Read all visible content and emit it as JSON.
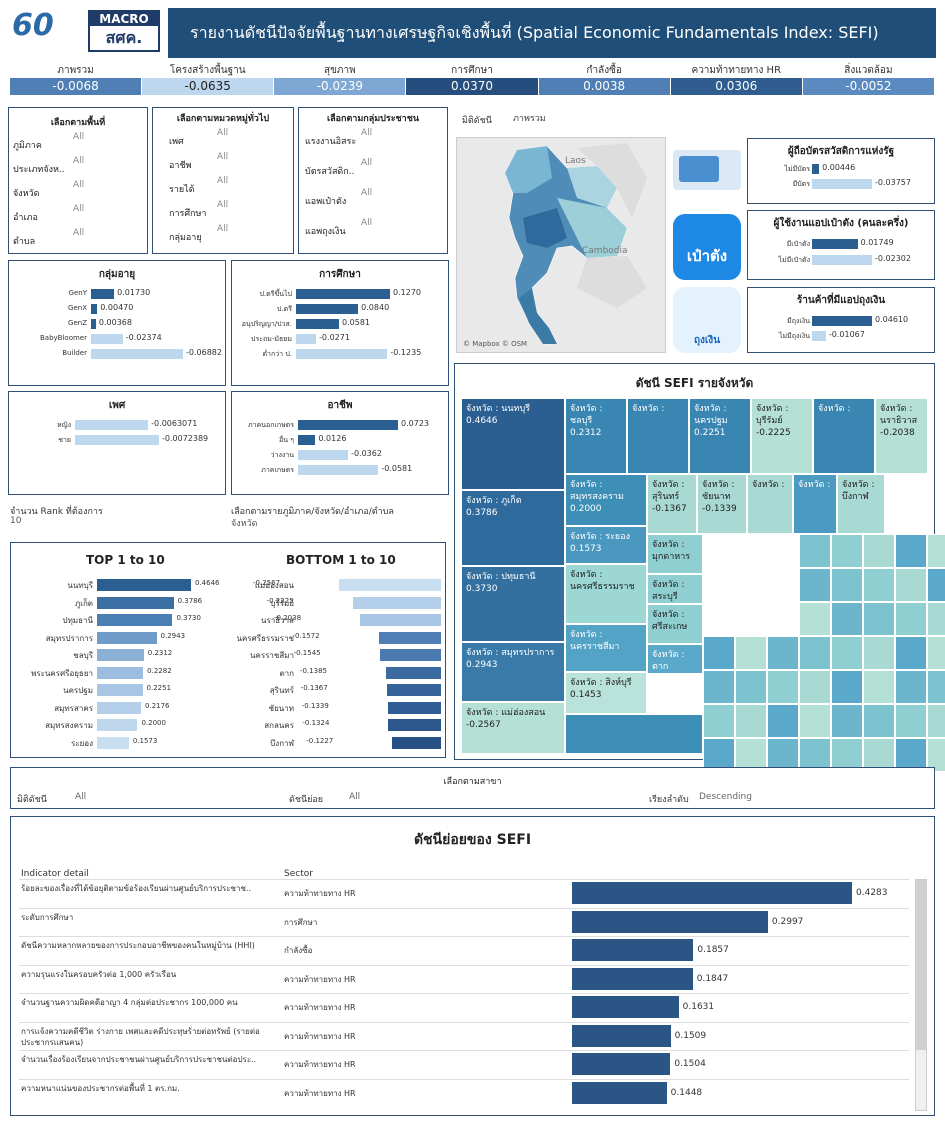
{
  "header": {
    "logo_60": "60",
    "logo_macro_top": "MACRO",
    "logo_macro_bottom": "สศค.",
    "title": "รายงานดัชนีปัจจัยพื้นฐานทางเศรษฐกิจเชิงพื้นที่ (Spatial Economic Fundamentals Index: SEFI)"
  },
  "kpis": [
    {
      "label": "ภาพรวม",
      "value": "-0.0068",
      "color": "#4f7fb5"
    },
    {
      "label": "โครงสร้างพื้นฐาน",
      "value": "-0.0635",
      "color": "#bdd7ee"
    },
    {
      "label": "สุขภาพ",
      "value": "-0.0239",
      "color": "#7fa7d4"
    },
    {
      "label": "การศึกษา",
      "value": "0.0370",
      "color": "#254d7d"
    },
    {
      "label": "กำลังซื้อ",
      "value": "0.0038",
      "color": "#4f7fb5"
    },
    {
      "label": "ความท้าทายทาง HR",
      "value": "0.0306",
      "color": "#2f5d8f"
    },
    {
      "label": "สิ่งแวดล้อม",
      "value": "-0.0052",
      "color": "#5a8ac0"
    }
  ],
  "filters_area": {
    "title": "เลือกตามพื้นที่",
    "items": [
      {
        "label": "ภูมิภาค",
        "value": "All"
      },
      {
        "label": "ประเภทจังห..",
        "value": "All"
      },
      {
        "label": "จังหวัด",
        "value": "All"
      },
      {
        "label": "อำเภอ",
        "value": "All"
      },
      {
        "label": "ตำบล",
        "value": "All"
      }
    ]
  },
  "filters_general": {
    "title": "เลือกตามหมวดหมู่ทั่วไป",
    "items": [
      {
        "label": "เพศ",
        "value": "All"
      },
      {
        "label": "อาชีพ",
        "value": "All"
      },
      {
        "label": "รายได้",
        "value": "All"
      },
      {
        "label": "การศึกษา",
        "value": "All"
      },
      {
        "label": "กลุ่มอายุ",
        "value": "All"
      }
    ]
  },
  "filters_pop": {
    "title": "เลือกตามกลุ่มประชาชน",
    "items": [
      {
        "label": "แรงงานอิสระ",
        "value": "All"
      },
      {
        "label": "บัตรสวัสดิก..",
        "value": "All"
      },
      {
        "label": "แอพเป๋าตัง",
        "value": "All"
      },
      {
        "label": "แอพถุงเงิน",
        "value": "All"
      }
    ]
  },
  "map": {
    "dim_label": "มิติดัชนี",
    "dim_value": "ภาพรวม",
    "laos": "Laos",
    "cambodia": "Cambodia",
    "credit": "© Mapbox © OSM"
  },
  "age": {
    "title": "กลุ่มอายุ",
    "rows": [
      {
        "label": "GenY",
        "value": "0.01730",
        "v": 0.0173
      },
      {
        "label": "GenX",
        "value": "0.00470",
        "v": 0.0047
      },
      {
        "label": "GenZ",
        "value": "0.00368",
        "v": 0.00368
      },
      {
        "label": "BabyBloomer",
        "value": "-0.02374",
        "v": -0.02374
      },
      {
        "label": "Builder",
        "value": "-0.06882",
        "v": -0.06882
      }
    ]
  },
  "edu": {
    "title": "การศึกษา",
    "rows": [
      {
        "label": "ป.ตรีขึ้นไป",
        "value": "0.1270",
        "v": 0.127
      },
      {
        "label": "ป.ตรี",
        "value": "0.0840",
        "v": 0.084
      },
      {
        "label": "อนุปริญญา/ปวส.",
        "value": "0.0581",
        "v": 0.0581
      },
      {
        "label": "ประถม-มัธยม",
        "value": "-0.0271",
        "v": -0.0271
      },
      {
        "label": "ต่ำกว่า ป.",
        "value": "-0.1235",
        "v": -0.1235
      }
    ]
  },
  "sex": {
    "title": "เพศ",
    "rows": [
      {
        "label": "หญิง",
        "value": "-0.0063071",
        "v": -0.0063071
      },
      {
        "label": "ชาย",
        "value": "-0.0072389",
        "v": -0.0072389
      }
    ]
  },
  "occ": {
    "title": "อาชีพ",
    "rows": [
      {
        "label": "ภาคนอกเกษตร",
        "value": "0.0723",
        "v": 0.0723
      },
      {
        "label": "อื่น ๆ",
        "value": "0.0126",
        "v": 0.0126
      },
      {
        "label": "ว่างงาน",
        "value": "-0.0362",
        "v": -0.0362
      },
      {
        "label": "ภาคเกษตร",
        "value": "-0.0581",
        "v": -0.0581
      }
    ]
  },
  "welfare": {
    "title": "ผู้ถือบัตรสวัสดิการแห่งรัฐ",
    "rows": [
      {
        "label": "ไม่มีบัตร",
        "value": "0.00446",
        "v": 0.00446
      },
      {
        "label": "มีบัตร",
        "value": "-0.03757",
        "v": -0.03757
      }
    ]
  },
  "paotang": {
    "title": "ผู้ใช้งานแอปเป๋าตัง (คนละครึ่ง)",
    "icon_text": "เป๋าตัง",
    "rows": [
      {
        "label": "มีเป๋าตัง",
        "value": "0.01749",
        "v": 0.01749
      },
      {
        "label": "ไม่มีเป๋าตัง",
        "value": "-0.02302",
        "v": -0.02302
      }
    ]
  },
  "tung": {
    "title": "ร้านค้าที่มีแอปถุงเงิน",
    "icon_text": "ถุงเงิน",
    "rows": [
      {
        "label": "มีถุงเงิน",
        "value": "0.04610",
        "v": 0.0461
      },
      {
        "label": "ไม่มีถุงเงิน",
        "value": "-0.01067",
        "v": -0.01067
      }
    ]
  },
  "rank": {
    "label": "จำนวน Rank ที่ต้องการ",
    "value": "10",
    "area_label": "เลือกตามรายภูมิภาค/จังหวัด/อำเภอ/ตำบล",
    "area_value": "จังหวัด"
  },
  "top": {
    "title": "TOP 1 to 10",
    "rows": [
      {
        "label": "นนทบุรี",
        "value": "0.4646",
        "v": 0.4646
      },
      {
        "label": "ภูเก็ต",
        "value": "0.3786",
        "v": 0.3786
      },
      {
        "label": "ปทุมธานี",
        "value": "0.3730",
        "v": 0.373
      },
      {
        "label": "สมุทรปราการ",
        "value": "0.2943",
        "v": 0.2943
      },
      {
        "label": "ชลบุรี",
        "value": "0.2312",
        "v": 0.2312
      },
      {
        "label": "พระนครศรีอยุธยา",
        "value": "0.2282",
        "v": 0.2282
      },
      {
        "label": "นครปฐม",
        "value": "0.2251",
        "v": 0.2251
      },
      {
        "label": "สมุทรสาคร",
        "value": "0.2176",
        "v": 0.2176
      },
      {
        "label": "สมุทรสงคราม",
        "value": "0.2000",
        "v": 0.2
      },
      {
        "label": "ระยอง",
        "value": "0.1573",
        "v": 0.1573
      }
    ]
  },
  "bottom": {
    "title": "BOTTOM 1 to 10",
    "rows": [
      {
        "label": "แม่ฮ่องสอน",
        "value": "-0.2567",
        "v": -0.2567
      },
      {
        "label": "บุรีรัมย์",
        "value": "-0.2225",
        "v": -0.2225
      },
      {
        "label": "นราธิวาส",
        "value": "-0.2038",
        "v": -0.2038
      },
      {
        "label": "นครศรีธรรมราช",
        "value": "-0.1572",
        "v": -0.1572
      },
      {
        "label": "นครราชสีมา",
        "value": "-0.1545",
        "v": -0.1545
      },
      {
        "label": "ตาก",
        "value": "-0.1385",
        "v": -0.1385
      },
      {
        "label": "สุรินทร์",
        "value": "-0.1367",
        "v": -0.1367
      },
      {
        "label": "ชัยนาท",
        "value": "-0.1339",
        "v": -0.1339
      },
      {
        "label": "สกลนคร",
        "value": "-0.1324",
        "v": -0.1324
      },
      {
        "label": "บึงกาฬ",
        "value": "-0.1227",
        "v": -0.1227
      }
    ]
  },
  "treemap": {
    "title": "ดัชนี SEFI รายจังหวัด",
    "cells": [
      {
        "name": "จังหวัด : นนทบุรี",
        "value": "0.4646"
      },
      {
        "name": "จังหวัด : ภูเก็ต",
        "value": "0.3786"
      },
      {
        "name": "จังหวัด : ปทุมธานี",
        "value": "0.3730"
      },
      {
        "name": "จังหวัด : สมุทรปราการ",
        "value": "0.2943"
      },
      {
        "name": "จังหวัด : แม่ฮ่องสอน",
        "value": "-0.2567"
      },
      {
        "name": "จังหวัด : ชลบุรี",
        "value": "0.2312"
      },
      {
        "name": "จังหวัด :",
        "value": ""
      },
      {
        "name": "จังหวัด : นครปฐม",
        "value": "0.2251"
      },
      {
        "name": "จังหวัด : บุรีรัมย์",
        "value": "-0.2225"
      },
      {
        "name": "จังหวัด :",
        "value": ""
      },
      {
        "name": "จังหวัด : นราธิวาส",
        "value": "-0.2038"
      },
      {
        "name": "จังหวัด : สมุทรสงคราม",
        "value": "0.2000"
      },
      {
        "name": "จังหวัด : สุรินทร์",
        "value": "-0.1367"
      },
      {
        "name": "จังหวัด : ชัยนาท",
        "value": "-0.1339"
      },
      {
        "name": "จังหวัด :",
        "value": ""
      },
      {
        "name": "จังหวัด :",
        "value": ""
      },
      {
        "name": "จังหวัด : บึงกาฬ",
        "value": ""
      },
      {
        "name": "จังหวัด : ระยอง",
        "value": "0.1573"
      },
      {
        "name": "จังหวัด : มุกดาหาร",
        "value": ""
      },
      {
        "name": "จังหวัด : นครศรีธรรมราช",
        "value": ""
      },
      {
        "name": "จังหวัด : สระบุรี",
        "value": ""
      },
      {
        "name": "จังหวัด : นครราชสีมา",
        "value": ""
      },
      {
        "name": "จังหวัด : ศรีสะเกษ",
        "value": ""
      },
      {
        "name": "จังหวัด : สิงห์บุรี",
        "value": "0.1453"
      },
      {
        "name": "จังหวัด : ตาก",
        "value": ""
      }
    ]
  },
  "branch": {
    "title": "เลือกตามสาขา",
    "dim_label": "มิติดัชนี",
    "dim_value": "All",
    "sub_label": "ดัชนีย่อย",
    "sub_value": "All",
    "sort_label": "เรียงลำดับ",
    "sort_value": "Descending"
  },
  "subindex": {
    "title": "ดัชนีย่อยของ SEFI",
    "col1": "Indicator detail",
    "col2": "Sector",
    "rows": [
      {
        "detail": "ร้อยละของเรื่องที่ได้ข้อยุติตามข้อร้องเรียนผ่านศูนย์บริการประชาช..",
        "sector": "ความท้าทายทาง HR",
        "value": "0.4283",
        "v": 0.4283
      },
      {
        "detail": "ระดับการศึกษา",
        "sector": "การศึกษา",
        "value": "0.2997",
        "v": 0.2997
      },
      {
        "detail": "ดัชนีความหลากหลายของการประกอบอาชีพของคนในหมู่บ้าน (HHI)",
        "sector": "กำลังซื้อ",
        "value": "0.1857",
        "v": 0.1857
      },
      {
        "detail": "ความรุนแรงในครอบครัวต่อ 1,000 ครัวเรือน",
        "sector": "ความท้าทายทาง HR",
        "value": "0.1847",
        "v": 0.1847
      },
      {
        "detail": "จำนวนฐานความผิดคดีอาญา 4 กลุ่มต่อประชากร 100,000 คน",
        "sector": "ความท้าทายทาง HR",
        "value": "0.1631",
        "v": 0.1631
      },
      {
        "detail": "การแจ้งความคดีชีวิต ร่างกาย เพศและคดีประทุษร้ายต่อทรัพย์ (รายต่อประชากรแสนคน)",
        "sector": "ความท้าทายทาง HR",
        "value": "0.1509",
        "v": 0.1509
      },
      {
        "detail": "จำนวนเรื่องร้องเรียนจากประชาชนผ่านศูนย์บริการประชาชนต่อประ..",
        "sector": "ความท้าทายทาง HR",
        "value": "0.1504",
        "v": 0.1504
      },
      {
        "detail": "ความหนาแน่นของประชากรต่อพื้นที่ 1 ตร.กม.",
        "sector": "ความท้าทายทาง HR",
        "value": "0.1448",
        "v": 0.1448
      }
    ]
  }
}
